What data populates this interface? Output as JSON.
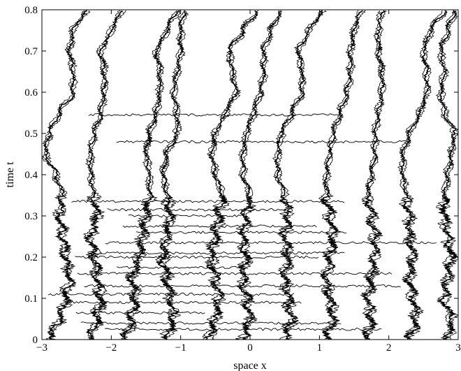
{
  "chart_data": {
    "type": "line",
    "title": "",
    "xlabel": "space x",
    "ylabel": "time t",
    "xlim": [
      -3,
      3
    ],
    "ylim": [
      0,
      0.8
    ],
    "grid": false,
    "legend": "none",
    "x_ticks": [
      -3,
      -2,
      -1,
      0,
      1,
      2,
      3
    ],
    "x_tick_labels": [
      "−3",
      "−2",
      "−1",
      "0",
      "1",
      "2",
      "3"
    ],
    "y_ticks": [
      0,
      0.1,
      0.2,
      0.3,
      0.4,
      0.5,
      0.6,
      0.7,
      0.8
    ],
    "y_tick_labels": [
      "0",
      "0.1",
      "0.2",
      "0.3",
      "0.4",
      "0.5",
      "0.6",
      "0.7",
      "0.8"
    ],
    "line_color": "#000000",
    "series": [
      {
        "t": [
          0.0,
          0.05,
          0.1,
          0.15,
          0.2,
          0.25,
          0.3,
          0.35,
          0.4,
          0.45,
          0.5,
          0.55,
          0.6,
          0.65,
          0.7,
          0.75,
          0.8
        ],
        "x": [
          -2.9,
          -2.75,
          -2.65,
          -2.6,
          -2.65,
          -2.7,
          -2.75,
          -2.7,
          -2.8,
          -2.95,
          -2.9,
          -2.75,
          -2.55,
          -2.55,
          -2.6,
          -2.55,
          -2.35
        ]
      },
      {
        "t": [
          0.0,
          0.05,
          0.1,
          0.15,
          0.2,
          0.25,
          0.3,
          0.35,
          0.4,
          0.45,
          0.5,
          0.55,
          0.6,
          0.65,
          0.7,
          0.75,
          0.8
        ],
        "x": [
          -2.3,
          -2.2,
          -2.15,
          -2.2,
          -2.25,
          -2.3,
          -2.2,
          -2.25,
          -2.3,
          -2.3,
          -2.25,
          -2.15,
          -2.1,
          -2.1,
          -2.15,
          -2.0,
          -1.85
        ]
      },
      {
        "t": [
          0.0,
          0.05,
          0.1,
          0.15,
          0.2,
          0.25,
          0.3,
          0.35,
          0.4,
          0.45,
          0.5,
          0.55,
          0.6,
          0.65,
          0.7,
          0.75,
          0.8
        ],
        "x": [
          -1.8,
          -1.7,
          -1.65,
          -1.7,
          -1.6,
          -1.55,
          -1.5,
          -1.45,
          -1.45,
          -1.5,
          -1.45,
          -1.35,
          -1.3,
          -1.3,
          -1.35,
          -1.2,
          -1.05
        ]
      },
      {
        "t": [
          0.0,
          0.05,
          0.1,
          0.15,
          0.2,
          0.25,
          0.3,
          0.35,
          0.4,
          0.45,
          0.5,
          0.55,
          0.6,
          0.65,
          0.7,
          0.75,
          0.8
        ],
        "x": [
          -1.2,
          -1.1,
          -1.15,
          -1.2,
          -1.25,
          -1.2,
          -1.15,
          -1.2,
          -1.25,
          -1.2,
          -1.05,
          -1.05,
          -1.1,
          -1.05,
          -1.0,
          -1.0,
          -0.95
        ]
      },
      {
        "t": [
          0.0,
          0.05,
          0.1,
          0.15,
          0.2,
          0.25,
          0.3,
          0.35,
          0.4,
          0.45,
          0.5,
          0.55,
          0.6,
          0.65,
          0.7,
          0.75,
          0.8
        ],
        "x": [
          -0.6,
          -0.5,
          -0.45,
          -0.5,
          -0.55,
          -0.5,
          -0.45,
          -0.4,
          -0.5,
          -0.55,
          -0.5,
          -0.35,
          -0.2,
          -0.25,
          -0.3,
          -0.1,
          0.1
        ]
      },
      {
        "t": [
          0.0,
          0.05,
          0.1,
          0.15,
          0.2,
          0.25,
          0.3,
          0.35,
          0.4,
          0.45,
          0.5,
          0.55,
          0.6,
          0.65,
          0.7,
          0.75,
          0.8
        ],
        "x": [
          -0.1,
          0.0,
          -0.05,
          -0.1,
          -0.05,
          -0.1,
          -0.05,
          0.0,
          -0.1,
          -0.1,
          -0.05,
          0.05,
          0.15,
          0.2,
          0.2,
          0.3,
          0.45
        ]
      },
      {
        "t": [
          0.0,
          0.05,
          0.1,
          0.15,
          0.2,
          0.25,
          0.3,
          0.35,
          0.4,
          0.45,
          0.5,
          0.55,
          0.6,
          0.65,
          0.7,
          0.75,
          0.8
        ],
        "x": [
          0.5,
          0.6,
          0.55,
          0.5,
          0.55,
          0.5,
          0.55,
          0.5,
          0.4,
          0.4,
          0.45,
          0.6,
          0.75,
          0.75,
          0.7,
          0.85,
          1.05
        ]
      },
      {
        "t": [
          0.0,
          0.05,
          0.1,
          0.15,
          0.2,
          0.25,
          0.3,
          0.35,
          0.4,
          0.45,
          0.5,
          0.55,
          0.6,
          0.65,
          0.7,
          0.75,
          0.8
        ],
        "x": [
          1.1,
          1.2,
          1.15,
          1.1,
          1.15,
          1.2,
          1.15,
          1.1,
          1.1,
          1.15,
          1.2,
          1.3,
          1.4,
          1.45,
          1.45,
          1.5,
          1.6
        ]
      },
      {
        "t": [
          0.0,
          0.05,
          0.1,
          0.15,
          0.2,
          0.25,
          0.3,
          0.35,
          0.4,
          0.45,
          0.5,
          0.55,
          0.6,
          0.65,
          0.7,
          0.75,
          0.8
        ],
        "x": [
          1.7,
          1.75,
          1.7,
          1.75,
          1.8,
          1.8,
          1.75,
          1.7,
          1.75,
          1.8,
          1.8,
          1.85,
          1.9,
          1.9,
          1.85,
          1.85,
          1.9
        ]
      },
      {
        "t": [
          0.0,
          0.05,
          0.1,
          0.15,
          0.2,
          0.25,
          0.3,
          0.35,
          0.4,
          0.45,
          0.5,
          0.55,
          0.6,
          0.65,
          0.7,
          0.75,
          0.8
        ],
        "x": [
          2.3,
          2.4,
          2.35,
          2.3,
          2.35,
          2.3,
          2.3,
          2.25,
          2.2,
          2.2,
          2.3,
          2.45,
          2.55,
          2.55,
          2.5,
          2.6,
          2.8
        ]
      },
      {
        "t": [
          0.0,
          0.05,
          0.1,
          0.15,
          0.2,
          0.25,
          0.3,
          0.35,
          0.4,
          0.45,
          0.5,
          0.55,
          0.6,
          0.65,
          0.7,
          0.75,
          0.8
        ],
        "x": [
          2.85,
          2.9,
          2.8,
          2.85,
          2.9,
          2.85,
          2.8,
          2.8,
          2.85,
          2.9,
          2.95,
          2.8,
          2.75,
          2.8,
          2.75,
          2.85,
          2.95
        ]
      }
    ],
    "horizontal_segments_t": [
      0.025,
      0.04,
      0.065,
      0.09,
      0.11,
      0.13,
      0.16,
      0.175,
      0.2,
      0.21,
      0.235,
      0.26,
      0.275,
      0.3,
      0.315,
      0.335,
      0.48,
      0.545
    ]
  }
}
